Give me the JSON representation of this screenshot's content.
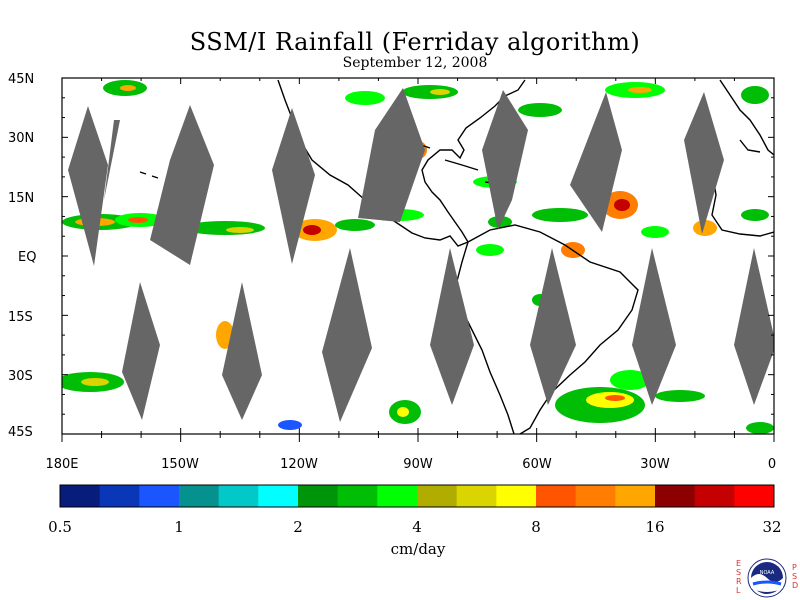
{
  "title": "SSM/I Rainfall (Ferriday algorithm)",
  "subtitle": "September 12, 2008",
  "lat_labels": [
    "45N",
    "30N",
    "15N",
    "EQ",
    "15S",
    "30S",
    "45S"
  ],
  "lon_labels": [
    "180E",
    "150W",
    "120W",
    "90W",
    "60W",
    "30W",
    "0"
  ],
  "colorbar": {
    "colors": [
      "#081c7c",
      "#0a36b8",
      "#1a55ff",
      "#05928e",
      "#03c8c8",
      "#00ffff",
      "#00940a",
      "#00bd05",
      "#00ff05",
      "#b0ad00",
      "#dad400",
      "#ffff00",
      "#ff5500",
      "#ff7d00",
      "#ffa600",
      "#8c0000",
      "#c40000",
      "#ff0000"
    ],
    "tick_labels": [
      "0.5",
      "1",
      "2",
      "4",
      "8",
      "16",
      "32"
    ],
    "unit_label": "cm/day"
  },
  "logo": {
    "left_letters": "ESRL",
    "right_letters": "PSD",
    "seal_text": "NOAA"
  },
  "colors": {
    "swath_gap": "#666666",
    "coastline": "#000000",
    "background": "#ffffff"
  }
}
